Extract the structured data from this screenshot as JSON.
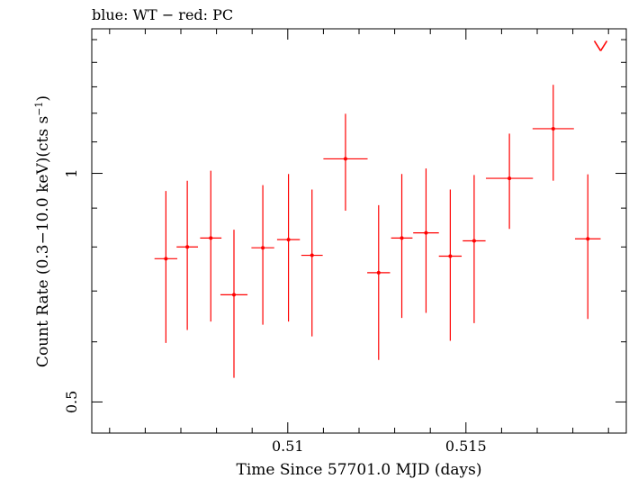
{
  "chart_data": {
    "type": "scatter",
    "title": "blue: WT − red: PC",
    "xlabel": "Time Since 57701.0 MJD (days)",
    "ylabel": "Count Rate (0.3−10.0 keV)(cts s",
    "ylabel_sup": "−1",
    "ylabel_end": ")",
    "xlim": [
      0.5045,
      0.5195
    ],
    "ylim": [
      0.455,
      1.55
    ],
    "yscale": "log",
    "xticks": [
      {
        "v": 0.51,
        "label": "0.51"
      },
      {
        "v": 0.515,
        "label": "0.515"
      }
    ],
    "yticks": [
      {
        "v": 0.5,
        "label": "0.5"
      },
      {
        "v": 1,
        "label": "1"
      }
    ],
    "series": [
      {
        "color": "#ff0000",
        "points": [
          {
            "x": 0.50658,
            "xerr": 0.00032,
            "y": 0.772,
            "ylo": 0.598,
            "yhi": 0.948
          },
          {
            "x": 0.50718,
            "xerr": 0.0003,
            "y": 0.8,
            "ylo": 0.622,
            "yhi": 0.978
          },
          {
            "x": 0.50784,
            "xerr": 0.0003,
            "y": 0.822,
            "ylo": 0.638,
            "yhi": 1.008
          },
          {
            "x": 0.50849,
            "xerr": 0.00038,
            "y": 0.692,
            "ylo": 0.538,
            "yhi": 0.843
          },
          {
            "x": 0.5093,
            "xerr": 0.00032,
            "y": 0.798,
            "ylo": 0.632,
            "yhi": 0.965
          },
          {
            "x": 0.51002,
            "xerr": 0.00032,
            "y": 0.818,
            "ylo": 0.638,
            "yhi": 0.998
          },
          {
            "x": 0.51068,
            "xerr": 0.0003,
            "y": 0.78,
            "ylo": 0.61,
            "yhi": 0.952
          },
          {
            "x": 0.51162,
            "xerr": 0.00062,
            "y": 1.045,
            "ylo": 0.893,
            "yhi": 1.198
          },
          {
            "x": 0.51255,
            "xerr": 0.00032,
            "y": 0.74,
            "ylo": 0.568,
            "yhi": 0.908
          },
          {
            "x": 0.5132,
            "xerr": 0.0003,
            "y": 0.822,
            "ylo": 0.645,
            "yhi": 0.998
          },
          {
            "x": 0.51388,
            "xerr": 0.00036,
            "y": 0.835,
            "ylo": 0.655,
            "yhi": 1.015
          },
          {
            "x": 0.51456,
            "xerr": 0.00032,
            "y": 0.778,
            "ylo": 0.602,
            "yhi": 0.952
          },
          {
            "x": 0.51523,
            "xerr": 0.00032,
            "y": 0.815,
            "ylo": 0.635,
            "yhi": 0.995
          },
          {
            "x": 0.51622,
            "xerr": 0.00066,
            "y": 0.985,
            "ylo": 0.845,
            "yhi": 1.128
          },
          {
            "x": 0.51745,
            "xerr": 0.00058,
            "y": 1.145,
            "ylo": 0.978,
            "yhi": 1.308
          },
          {
            "x": 0.51842,
            "xerr": 0.00036,
            "y": 0.82,
            "ylo": 0.643,
            "yhi": 0.997
          }
        ],
        "upper_limits": [
          {
            "x": 0.51878,
            "y": 1.45
          }
        ]
      }
    ]
  }
}
